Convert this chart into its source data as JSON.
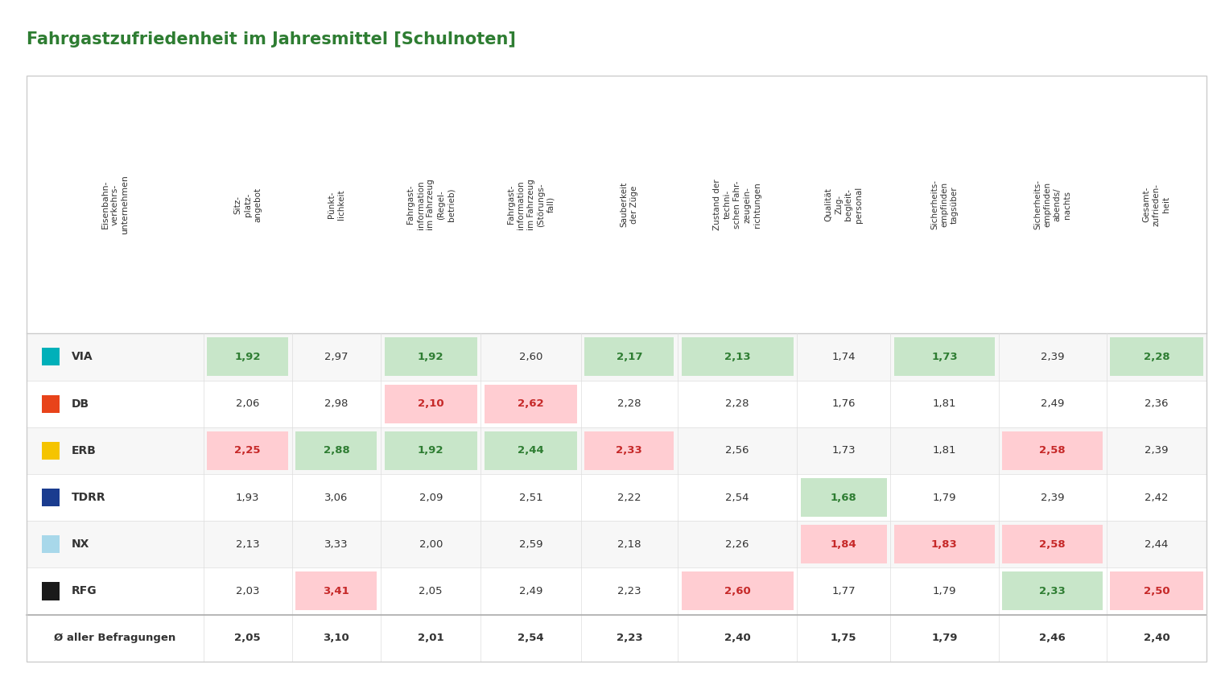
{
  "title": "Fahrgastzufriedenheit im Jahresmittel [Schulnoten]",
  "title_color": "#2e7d32",
  "background_color": "#ffffff",
  "col_headers": [
    "Eisenbahn-\nverkehrs-\nunternehmen",
    "Sitz-\nplatz-\nangebot",
    "Pünkt-\nlichkeit",
    "Fahrgast-\ninformation\nim Fahrzeug\n(Regel-\nbetrieb)",
    "Fahrgast-\ninformation\nim Fahrzeug\n(Störungs-\nfall)",
    "Sauberkeit\nder Züge",
    "Zustand der\ntechni-\nschen Fahr-\nzeugein-\nrichtungen",
    "Qualität\nZug-\nbegleit-\npersonal",
    "Sicherheits-\nempfinden\ntagsüber",
    "Sicherheits-\nempfinden\nabends/\nnachts",
    "Gesamt-\nzufrieden-\nheit"
  ],
  "row_labels": [
    "VIA",
    "DB",
    "ERB",
    "TDRR",
    "NX",
    "RFG"
  ],
  "row_colors": [
    "#00b0b9",
    "#e8431a",
    "#f5c400",
    "#1a3c8f",
    "#a8d8ea",
    "#1a1a1a"
  ],
  "avg_label": "Ø aller Befragungen",
  "data": [
    [
      "1,92",
      "2,97",
      "1,92",
      "2,60",
      "2,17",
      "2,13",
      "1,74",
      "1,73",
      "2,39",
      "2,28"
    ],
    [
      "2,06",
      "2,98",
      "2,10",
      "2,62",
      "2,28",
      "2,28",
      "1,76",
      "1,81",
      "2,49",
      "2,36"
    ],
    [
      "2,25",
      "2,88",
      "1,92",
      "2,44",
      "2,33",
      "2,56",
      "1,73",
      "1,81",
      "2,58",
      "2,39"
    ],
    [
      "1,93",
      "3,06",
      "2,09",
      "2,51",
      "2,22",
      "2,54",
      "1,68",
      "1,79",
      "2,39",
      "2,42"
    ],
    [
      "2,13",
      "3,33",
      "2,00",
      "2,59",
      "2,18",
      "2,26",
      "1,84",
      "1,83",
      "2,58",
      "2,44"
    ],
    [
      "2,03",
      "3,41",
      "2,05",
      "2,49",
      "2,23",
      "2,60",
      "1,77",
      "1,79",
      "2,33",
      "2,50"
    ]
  ],
  "avg_row": [
    "2,05",
    "3,10",
    "2,01",
    "2,54",
    "2,23",
    "2,40",
    "1,75",
    "1,79",
    "2,46",
    "2,40"
  ],
  "cell_bg": [
    [
      "#c8e6c9",
      null,
      "#c8e6c9",
      null,
      "#c8e6c9",
      "#c8e6c9",
      null,
      "#c8e6c9",
      null,
      "#c8e6c9"
    ],
    [
      null,
      null,
      "#ffcdd2",
      "#ffcdd2",
      null,
      null,
      null,
      null,
      null,
      null
    ],
    [
      "#ffcdd2",
      "#c8e6c9",
      "#c8e6c9",
      "#c8e6c9",
      "#ffcdd2",
      null,
      null,
      null,
      "#ffcdd2",
      null
    ],
    [
      null,
      null,
      null,
      null,
      null,
      null,
      "#c8e6c9",
      null,
      null,
      null
    ],
    [
      null,
      null,
      null,
      null,
      null,
      null,
      "#ffcdd2",
      "#ffcdd2",
      "#ffcdd2",
      null
    ],
    [
      null,
      "#ffcdd2",
      null,
      null,
      null,
      "#ffcdd2",
      null,
      null,
      "#c8e6c9",
      "#ffcdd2"
    ]
  ],
  "cell_text_color": [
    [
      "#2e7d32",
      "#333333",
      "#2e7d32",
      "#333333",
      "#2e7d32",
      "#2e7d32",
      "#333333",
      "#2e7d32",
      "#333333",
      "#2e7d32"
    ],
    [
      "#333333",
      "#333333",
      "#c62828",
      "#c62828",
      "#333333",
      "#333333",
      "#333333",
      "#333333",
      "#333333",
      "#333333"
    ],
    [
      "#c62828",
      "#2e7d32",
      "#2e7d32",
      "#2e7d32",
      "#c62828",
      "#333333",
      "#333333",
      "#333333",
      "#c62828",
      "#333333"
    ],
    [
      "#333333",
      "#333333",
      "#333333",
      "#333333",
      "#333333",
      "#333333",
      "#2e7d32",
      "#333333",
      "#333333",
      "#333333"
    ],
    [
      "#333333",
      "#333333",
      "#333333",
      "#333333",
      "#333333",
      "#333333",
      "#c62828",
      "#c62828",
      "#c62828",
      "#333333"
    ],
    [
      "#333333",
      "#c62828",
      "#333333",
      "#333333",
      "#333333",
      "#c62828",
      "#333333",
      "#333333",
      "#2e7d32",
      "#c62828"
    ]
  ]
}
